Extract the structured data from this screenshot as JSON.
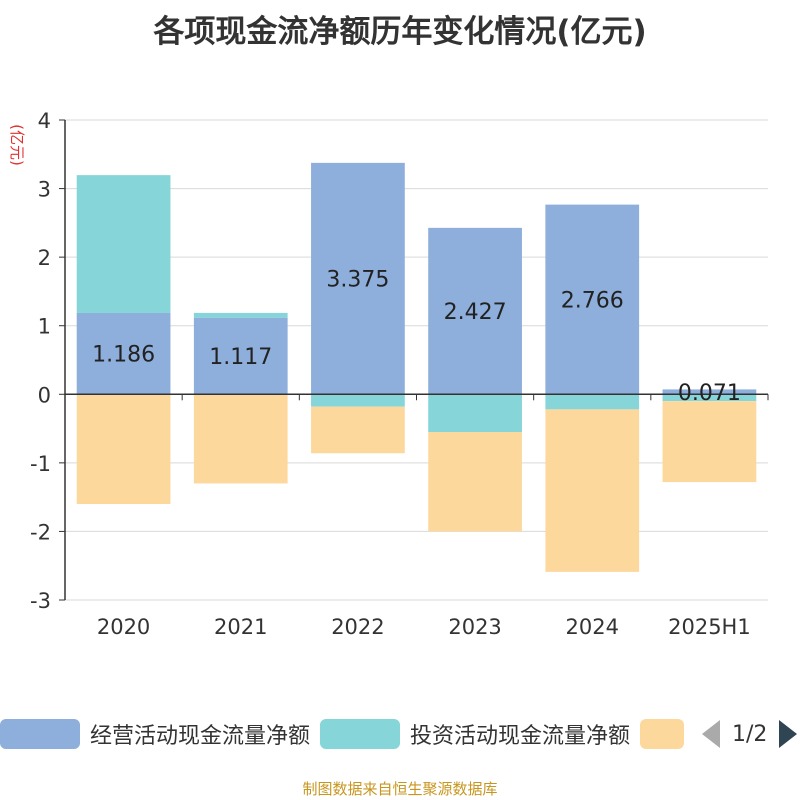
{
  "title": "各项现金流净额历年变化情况(亿元)",
  "ylabel": "(亿元)",
  "source": "制图数据来自恒生聚源数据库",
  "legend_page": "1/2",
  "chart_data": {
    "type": "bar",
    "stacked": true,
    "categories": [
      "2020",
      "2021",
      "2022",
      "2023",
      "2024",
      "2025H1"
    ],
    "ylim": [
      -3,
      4
    ],
    "yticks": [
      "4",
      "3",
      "2",
      "1",
      "0",
      "-1",
      "-2",
      "-3"
    ],
    "grid": true,
    "legend_position": "bottom",
    "series": [
      {
        "name": "经营活动现金流量净额",
        "color": "#8eaedb",
        "values": [
          1.186,
          1.117,
          3.375,
          2.427,
          2.766,
          0.071
        ],
        "labels": [
          "1.186",
          "1.117",
          "3.375",
          "2.427",
          "2.766",
          "0.071"
        ]
      },
      {
        "name": "投资活动现金流量净额",
        "color": "#86d5d8",
        "values": [
          2.01,
          0.07,
          -0.18,
          -0.55,
          -0.22,
          -0.1
        ]
      },
      {
        "name": "",
        "color": "#fdd89d",
        "values": [
          -1.6,
          -1.3,
          -0.68,
          -1.45,
          -2.37,
          -1.18
        ]
      }
    ]
  }
}
